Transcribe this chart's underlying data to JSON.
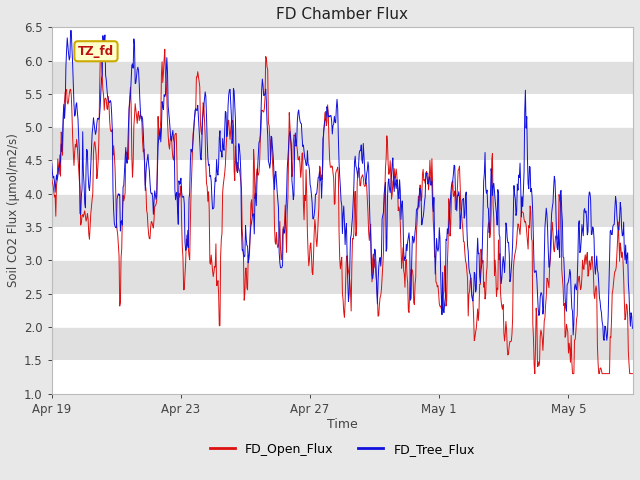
{
  "title": "FD Chamber Flux",
  "xlabel": "Time",
  "ylabel": "Soil CO2 Flux (μmol/m2/s)",
  "ylim": [
    1.0,
    6.5
  ],
  "yticks": [
    1.0,
    1.5,
    2.0,
    2.5,
    3.0,
    3.5,
    4.0,
    4.5,
    5.0,
    5.5,
    6.0,
    6.5
  ],
  "line1_label": "FD_Open_Flux",
  "line1_color": "#dd1111",
  "line2_label": "FD_Tree_Flux",
  "line2_color": "#1111dd",
  "annotation_text": "TZ_fd",
  "fig_bg": "#e8e8e8",
  "band_colors": [
    "#ffffff",
    "#e0e0e0"
  ],
  "seed": 12345
}
